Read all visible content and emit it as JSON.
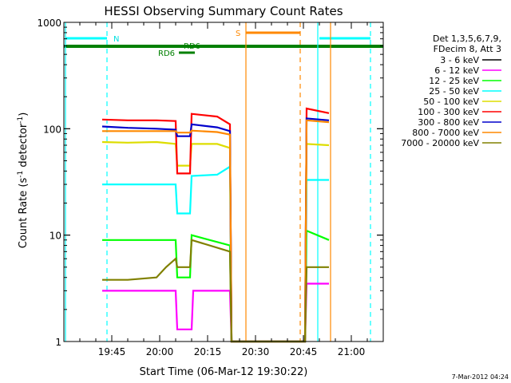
{
  "chart_data": {
    "type": "line",
    "title": "HESSI Observing Summary Count Rates",
    "xlabel": "Start Time (06-Mar-12 19:30:22)",
    "ylabel_main": "Count Rate (s",
    "ylabel_sup1": "-1",
    "ylabel_mid": " detector",
    "ylabel_sup2": "-1",
    "ylabel_end": ")",
    "yscale": "log",
    "ylim": [
      1,
      1000
    ],
    "xlim_minutes": [
      0,
      100
    ],
    "x_ticks": [
      {
        "minute": 15,
        "label": "19:45"
      },
      {
        "minute": 30,
        "label": "20:00"
      },
      {
        "minute": 45,
        "label": "20:15"
      },
      {
        "minute": 60,
        "label": "20:30"
      },
      {
        "minute": 75,
        "label": "20:45"
      },
      {
        "minute": 90,
        "label": "21:00"
      }
    ],
    "y_ticks": [
      {
        "value": 1,
        "label": "1"
      },
      {
        "value": 10,
        "label": "10"
      },
      {
        "value": 100,
        "label": "100"
      },
      {
        "value": 1000,
        "label": "1000"
      }
    ],
    "legend_header": [
      "Det 1,3,5,6,7,9,",
      "FDecim 8, Att 3"
    ],
    "legend_placement": "top-right, outside",
    "series": [
      {
        "name": "3 - 6 keV",
        "color": "#000000",
        "points": []
      },
      {
        "name": "6 - 12 keV",
        "color": "#ff00ff",
        "points": [
          [
            12,
            3
          ],
          [
            20,
            3
          ],
          [
            29,
            3
          ],
          [
            35,
            3
          ],
          [
            35.5,
            1.3
          ],
          [
            40,
            1.3
          ],
          [
            40.5,
            3
          ],
          [
            52,
            3
          ],
          [
            52.5,
            1
          ],
          [
            75.5,
            1
          ],
          [
            76,
            3.5
          ],
          [
            83,
            3.5
          ]
        ]
      },
      {
        "name": "12 - 25 keV",
        "color": "#00ff00",
        "points": [
          [
            12,
            9
          ],
          [
            20,
            9
          ],
          [
            29,
            9
          ],
          [
            35,
            9
          ],
          [
            35.5,
            4
          ],
          [
            39.5,
            4
          ],
          [
            40,
            10
          ],
          [
            52,
            8
          ],
          [
            52.5,
            1
          ],
          [
            75.5,
            1
          ],
          [
            76,
            11
          ],
          [
            83,
            9
          ]
        ]
      },
      {
        "name": "25 - 50 keV",
        "color": "#00ffff",
        "points": [
          [
            12,
            30
          ],
          [
            20,
            30
          ],
          [
            29,
            30
          ],
          [
            35,
            30
          ],
          [
            35.5,
            16
          ],
          [
            39.5,
            16
          ],
          [
            40,
            36
          ],
          [
            48,
            37
          ],
          [
            52,
            44
          ],
          [
            52.5,
            1
          ],
          [
            75.5,
            1
          ],
          [
            76,
            33
          ],
          [
            83,
            33
          ]
        ]
      },
      {
        "name": "50 - 100 keV",
        "color": "#dddd00",
        "points": [
          [
            12,
            75
          ],
          [
            20,
            74
          ],
          [
            29,
            75
          ],
          [
            35,
            72
          ],
          [
            35.5,
            45
          ],
          [
            39.5,
            45
          ],
          [
            40,
            72
          ],
          [
            48,
            72
          ],
          [
            52,
            66
          ],
          [
            52.5,
            1
          ],
          [
            75.5,
            1
          ],
          [
            76,
            72
          ],
          [
            83,
            70
          ]
        ]
      },
      {
        "name": "100 - 300 keV",
        "color": "#ff0000",
        "points": [
          [
            12,
            122
          ],
          [
            20,
            120
          ],
          [
            29,
            120
          ],
          [
            35,
            118
          ],
          [
            35.5,
            38
          ],
          [
            39.5,
            38
          ],
          [
            40,
            138
          ],
          [
            48,
            130
          ],
          [
            52,
            110
          ],
          [
            52.5,
            1
          ],
          [
            75.5,
            1
          ],
          [
            76,
            155
          ],
          [
            83,
            140
          ]
        ]
      },
      {
        "name": "300 - 800 keV",
        "color": "#0000cc",
        "points": [
          [
            12,
            105
          ],
          [
            20,
            102
          ],
          [
            29,
            100
          ],
          [
            35,
            98
          ],
          [
            35.5,
            85
          ],
          [
            39.5,
            85
          ],
          [
            40,
            110
          ],
          [
            48,
            103
          ],
          [
            52,
            95
          ],
          [
            52.5,
            1
          ],
          [
            75.5,
            1
          ],
          [
            76,
            125
          ],
          [
            83,
            120
          ]
        ]
      },
      {
        "name": "800 - 7000 keV",
        "color": "#ff8800",
        "points": [
          [
            12,
            95
          ],
          [
            20,
            95
          ],
          [
            29,
            95
          ],
          [
            35,
            95
          ],
          [
            35.5,
            92
          ],
          [
            39.5,
            92
          ],
          [
            40,
            96
          ],
          [
            48,
            93
          ],
          [
            52,
            88
          ],
          [
            52.5,
            1
          ],
          [
            75.5,
            1
          ],
          [
            76,
            120
          ],
          [
            83,
            115
          ]
        ]
      },
      {
        "name": "7000 - 20000 keV",
        "color": "#808000",
        "points": [
          [
            12,
            3.8
          ],
          [
            20,
            3.8
          ],
          [
            29,
            4
          ],
          [
            32,
            5
          ],
          [
            35,
            6
          ],
          [
            35.5,
            5
          ],
          [
            39.5,
            5
          ],
          [
            40,
            9
          ],
          [
            52,
            7
          ],
          [
            52.5,
            1
          ],
          [
            75.5,
            1
          ],
          [
            76,
            5
          ],
          [
            83,
            5
          ]
        ]
      }
    ],
    "annotations": {
      "night_label": "N",
      "saa_label": "S",
      "rd_label_1": "RD6",
      "rd_label_2": "RD6",
      "timestamp": "7-Mar-2012 04:24"
    },
    "attenuator_line_color": "#008000"
  }
}
